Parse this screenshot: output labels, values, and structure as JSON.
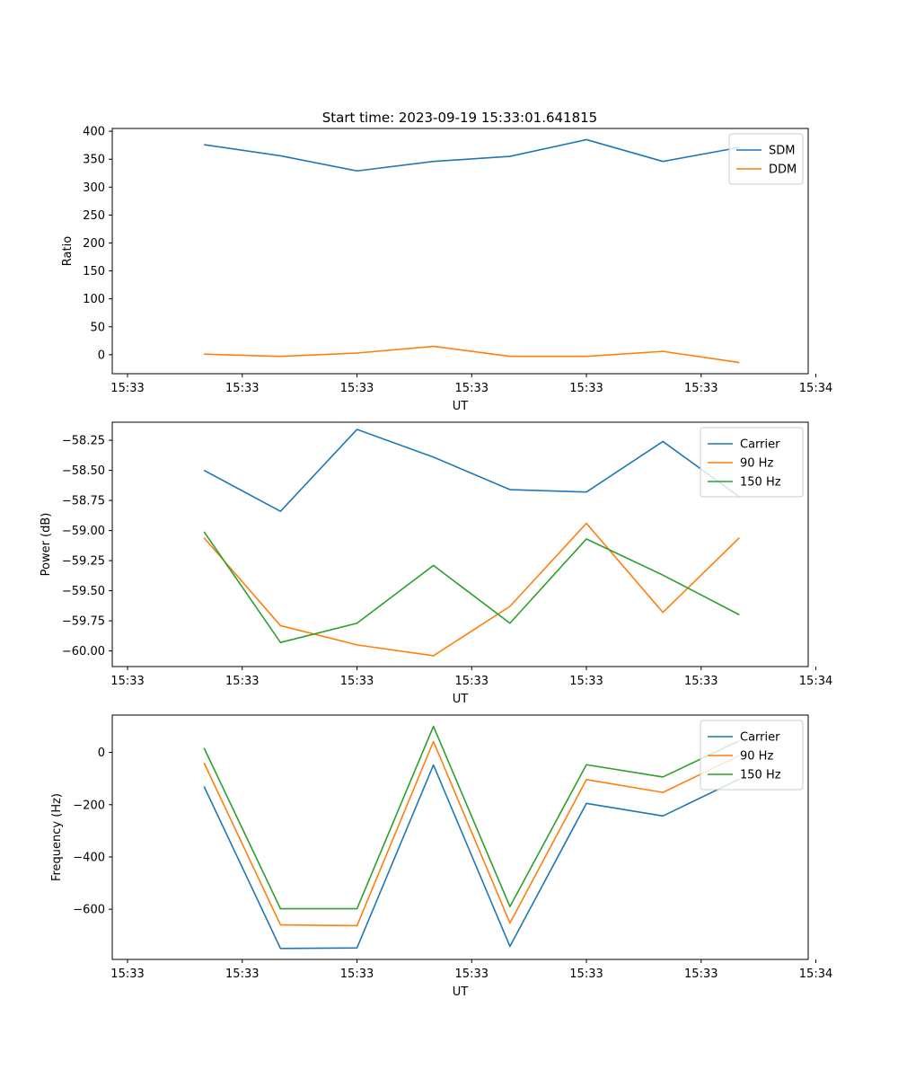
{
  "figure_title": "Start time: 2023-09-19 15:33:01.641815",
  "chart_data": [
    {
      "type": "line",
      "xlabel": "UT",
      "ylabel": "Ratio",
      "x_tick_labels": [
        "15:33",
        "15:33",
        "15:33",
        "15:33",
        "15:33",
        "15:33",
        "15:34"
      ],
      "x": [
        1,
        2,
        3,
        4,
        5,
        6,
        7,
        8
      ],
      "xlim": [
        -0.2,
        8.9
      ],
      "ylim": [
        -34,
        405
      ],
      "yticks": [
        0,
        50,
        100,
        150,
        200,
        250,
        300,
        350,
        400
      ],
      "legend": "top-right",
      "series": [
        {
          "name": "SDM",
          "color": "#1f77b4",
          "values": [
            376,
            356,
            329,
            346,
            355,
            385,
            346,
            371
          ]
        },
        {
          "name": "DDM",
          "color": "#ff7f0e",
          "values": [
            1,
            -3,
            3,
            15,
            -3,
            -3,
            6,
            -14
          ]
        }
      ]
    },
    {
      "type": "line",
      "xlabel": "UT",
      "ylabel": "Power (dB)",
      "x_tick_labels": [
        "15:33",
        "15:33",
        "15:33",
        "15:33",
        "15:33",
        "15:33",
        "15:34"
      ],
      "x": [
        1,
        2,
        3,
        4,
        5,
        6,
        7,
        8
      ],
      "xlim": [
        -0.2,
        8.9
      ],
      "ylim": [
        -60.13,
        -58.1
      ],
      "yticks": [
        -60.0,
        -59.75,
        -59.5,
        -59.25,
        -59.0,
        -58.75,
        -58.5,
        -58.25
      ],
      "ytick_labels": [
        "−60.00",
        "−59.75",
        "−59.50",
        "−59.25",
        "−59.00",
        "−58.75",
        "−58.50",
        "−58.25"
      ],
      "legend": "top-right",
      "series": [
        {
          "name": "Carrier",
          "color": "#1f77b4",
          "values": [
            -58.5,
            -58.84,
            -58.16,
            -58.39,
            -58.66,
            -58.68,
            -58.26,
            -58.72
          ]
        },
        {
          "name": "90 Hz",
          "color": "#ff7f0e",
          "values": [
            -59.06,
            -59.79,
            -59.95,
            -60.04,
            -59.63,
            -58.94,
            -59.68,
            -59.06
          ]
        },
        {
          "name": "150 Hz",
          "color": "#2ca02c",
          "values": [
            -59.01,
            -59.93,
            -59.77,
            -59.29,
            -59.77,
            -59.07,
            -59.37,
            -59.7
          ]
        }
      ]
    },
    {
      "type": "line",
      "xlabel": "UT",
      "ylabel": "Frequency (Hz)",
      "x_tick_labels": [
        "15:33",
        "15:33",
        "15:33",
        "15:33",
        "15:33",
        "15:33",
        "15:34"
      ],
      "x": [
        1,
        2,
        3,
        4,
        5,
        6,
        7,
        8
      ],
      "xlim": [
        -0.2,
        8.9
      ],
      "ylim": [
        -792,
        143
      ],
      "yticks": [
        -600,
        -400,
        -200,
        0
      ],
      "ytick_labels": [
        "−600",
        "−400",
        "−200",
        "0"
      ],
      "legend": "top-right",
      "series": [
        {
          "name": "Carrier",
          "color": "#1f77b4",
          "values": [
            -130,
            -750,
            -748,
            -48,
            -742,
            -195,
            -243,
            -102
          ]
        },
        {
          "name": "90 Hz",
          "color": "#ff7f0e",
          "values": [
            -40,
            -660,
            -663,
            42,
            -653,
            -104,
            -153,
            -12
          ]
        },
        {
          "name": "150 Hz",
          "color": "#2ca02c",
          "values": [
            17,
            -598,
            -598,
            100,
            -590,
            -47,
            -94,
            45
          ]
        }
      ]
    }
  ]
}
